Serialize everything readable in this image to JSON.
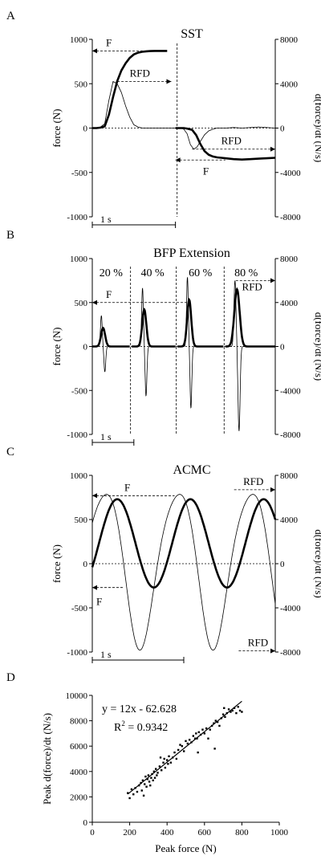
{
  "chart_data": [
    {
      "panel_letter": "A",
      "type": "line",
      "title": "SST",
      "ylabel": "force (N)",
      "y2label": "d(force)/dt (N/s)",
      "ylim": [
        -1000,
        1000
      ],
      "y2lim": [
        -8000,
        8000
      ],
      "yticks": [
        1000,
        500,
        0,
        -500,
        -1000
      ],
      "y2ticks": [
        8000,
        4000,
        0,
        -4000,
        -8000
      ],
      "xlim": [
        0,
        2.2
      ],
      "scalebar_label": "1 s",
      "annotations": [
        "F",
        "RFD",
        "RFD",
        "F"
      ],
      "series": [
        {
          "role": "force",
          "x": [
            0,
            0.05,
            0.1,
            0.15,
            0.2,
            0.25,
            0.3,
            0.35,
            0.4,
            0.45,
            0.5,
            0.55,
            0.6,
            0.65,
            0.7,
            0.75,
            0.8,
            0.85,
            0.9,
            1.0,
            1.07,
            1.1,
            1.14,
            1.2,
            1.25,
            1.3,
            1.35,
            1.4,
            1.45,
            1.5,
            1.55,
            1.6,
            1.7,
            1.8,
            1.9,
            2.0,
            2.1,
            2.2
          ],
          "y": [
            0,
            0,
            5,
            20,
            150,
            350,
            530,
            650,
            730,
            790,
            830,
            850,
            860,
            865,
            868,
            870,
            870,
            870,
            870,
            0,
            0,
            0,
            -5,
            -20,
            -80,
            -180,
            -260,
            -300,
            -320,
            -330,
            -335,
            -340,
            -350,
            -355,
            -350,
            -345,
            -340,
            -335
          ]
        },
        {
          "role": "rfd",
          "x": [
            0,
            0.05,
            0.1,
            0.15,
            0.2,
            0.25,
            0.3,
            0.35,
            0.4,
            0.45,
            0.5,
            0.55,
            0.6,
            0.7,
            0.8,
            0.9,
            1.0,
            1.07,
            1.1,
            1.14,
            1.18,
            1.22,
            1.26,
            1.3,
            1.35,
            1.4,
            1.45,
            1.5,
            1.6,
            1.7,
            1.8,
            2.0,
            2.2
          ],
          "y": [
            0,
            0,
            100,
            400,
            2500,
            4200,
            4000,
            3200,
            2000,
            1000,
            300,
            100,
            0,
            0,
            0,
            0,
            0,
            0,
            -100,
            -500,
            -1500,
            -1900,
            -1700,
            -1200,
            -600,
            -250,
            -100,
            0,
            0,
            50,
            0,
            100,
            0
          ]
        }
      ]
    },
    {
      "panel_letter": "B",
      "type": "line",
      "title": "BFP Extension",
      "ylabel": "force (N)",
      "y2label": "d(force)/dt (N/s)",
      "ylim": [
        -1000,
        1000
      ],
      "y2lim": [
        -8000,
        8000
      ],
      "yticks": [
        1000,
        500,
        0,
        -500,
        -1000
      ],
      "y2ticks": [
        8000,
        4000,
        0,
        -4000,
        -8000
      ],
      "xlim": [
        0,
        4.4
      ],
      "scalebar_label": "1 s",
      "segment_labels": [
        "20 %",
        "40 %",
        "60 %",
        "80 %"
      ],
      "annotations": [
        "F",
        "RFD"
      ],
      "series": [
        {
          "role": "force",
          "pulses": [
            {
              "center": 0.26,
              "peak": 210,
              "width": 0.07
            },
            {
              "center": 1.25,
              "peak": 420,
              "width": 0.07
            },
            {
              "center": 2.33,
              "peak": 530,
              "width": 0.07
            },
            {
              "center": 3.48,
              "peak": 650,
              "width": 0.09
            }
          ]
        },
        {
          "role": "rfd",
          "pulses": [
            {
              "center": 0.26,
              "pos_peak": 2800,
              "neg_peak": -2300,
              "width": 0.06
            },
            {
              "center": 1.25,
              "pos_peak": 5300,
              "neg_peak": -4500,
              "width": 0.06
            },
            {
              "center": 2.33,
              "pos_peak": 6300,
              "neg_peak": -5600,
              "width": 0.06
            },
            {
              "center": 3.48,
              "pos_peak": 6000,
              "neg_peak": -7700,
              "width": 0.07
            }
          ]
        }
      ]
    },
    {
      "panel_letter": "C",
      "type": "line",
      "title": "ACMC",
      "ylabel": "force (N)",
      "y2label": "d(force)/dt (N/s)",
      "ylim": [
        -1000,
        1000
      ],
      "y2lim": [
        -8000,
        8000
      ],
      "yticks": [
        1000,
        500,
        0,
        -500,
        -1000
      ],
      "y2ticks": [
        8000,
        4000,
        0,
        -4000,
        -8000
      ],
      "xlim": [
        0,
        2.0
      ],
      "scalebar_label": "1 s",
      "annotations": [
        "F",
        "RFD",
        "F",
        "RFD"
      ],
      "series": [
        {
          "role": "force",
          "cycles": 2.5,
          "max": 730,
          "min": -270,
          "period": 0.8
        },
        {
          "role": "rfd",
          "cycles": 2.5,
          "max": 6700,
          "min": -7900,
          "period": 0.8
        }
      ]
    },
    {
      "panel_letter": "D",
      "type": "scatter",
      "xlabel": "Peak force (N)",
      "ylabel": "Peak d(force)/dt (N/s)",
      "xlim": [
        0,
        1000
      ],
      "ylim": [
        0,
        10000
      ],
      "xticks": [
        0,
        200,
        400,
        600,
        800,
        1000
      ],
      "yticks": [
        0,
        2000,
        4000,
        6000,
        8000,
        10000
      ],
      "equation": "y = 12x - 62.628",
      "r2_prefix": "R",
      "r2_exponent": "2",
      "r2_value": " = 0.9342",
      "fit": {
        "slope": 12,
        "intercept": -62.628,
        "x_range": [
          190,
          800
        ]
      },
      "points": [
        [
          190,
          2300
        ],
        [
          200,
          1900
        ],
        [
          210,
          2600
        ],
        [
          220,
          2200
        ],
        [
          230,
          2700
        ],
        [
          240,
          2400
        ],
        [
          250,
          2900
        ],
        [
          260,
          3100
        ],
        [
          265,
          2500
        ],
        [
          270,
          3300
        ],
        [
          275,
          2100
        ],
        [
          280,
          3000
        ],
        [
          285,
          3600
        ],
        [
          290,
          2800
        ],
        [
          295,
          3400
        ],
        [
          300,
          3700
        ],
        [
          305,
          3200
        ],
        [
          310,
          2900
        ],
        [
          315,
          3500
        ],
        [
          320,
          3800
        ],
        [
          325,
          3300
        ],
        [
          330,
          4000
        ],
        [
          335,
          3500
        ],
        [
          340,
          4200
        ],
        [
          345,
          3700
        ],
        [
          350,
          3900
        ],
        [
          360,
          4400
        ],
        [
          365,
          5100
        ],
        [
          370,
          4100
        ],
        [
          380,
          4700
        ],
        [
          385,
          5000
        ],
        [
          390,
          4300
        ],
        [
          400,
          4900
        ],
        [
          405,
          4600
        ],
        [
          410,
          5200
        ],
        [
          420,
          4700
        ],
        [
          430,
          5100
        ],
        [
          440,
          5500
        ],
        [
          450,
          5000
        ],
        [
          460,
          5700
        ],
        [
          470,
          6100
        ],
        [
          480,
          6000
        ],
        [
          490,
          5600
        ],
        [
          500,
          6400
        ],
        [
          510,
          6200
        ],
        [
          520,
          6500
        ],
        [
          530,
          6300
        ],
        [
          540,
          6800
        ],
        [
          550,
          6600
        ],
        [
          555,
          7000
        ],
        [
          560,
          6600
        ],
        [
          565,
          5500
        ],
        [
          570,
          7100
        ],
        [
          580,
          6900
        ],
        [
          590,
          7300
        ],
        [
          600,
          7000
        ],
        [
          610,
          7400
        ],
        [
          620,
          6600
        ],
        [
          630,
          7300
        ],
        [
          640,
          7600
        ],
        [
          650,
          7800
        ],
        [
          655,
          5800
        ],
        [
          660,
          8000
        ],
        [
          670,
          7900
        ],
        [
          680,
          7600
        ],
        [
          690,
          8200
        ],
        [
          700,
          8500
        ],
        [
          705,
          9000
        ],
        [
          710,
          8300
        ],
        [
          720,
          8600
        ],
        [
          730,
          8900
        ],
        [
          740,
          8700
        ],
        [
          750,
          8800
        ],
        [
          760,
          9000
        ],
        [
          770,
          8600
        ],
        [
          780,
          9100
        ],
        [
          790,
          8800
        ],
        [
          800,
          8700
        ]
      ]
    }
  ]
}
